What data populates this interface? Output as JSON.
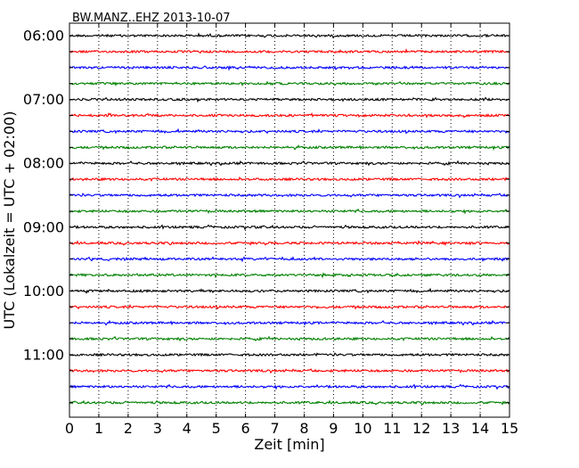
{
  "chart_data": {
    "type": "line",
    "title": "BW.MANZ..EHZ 2013-10-07",
    "xlabel": "Zeit  [min]",
    "ylabel": "UTC (Lokalzeit = UTC + 02:00)",
    "xlim": [
      0,
      15
    ],
    "x_ticks": [
      "0",
      "1",
      "2",
      "3",
      "4",
      "5",
      "6",
      "7",
      "8",
      "9",
      "10",
      "11",
      "12",
      "13",
      "14",
      "15"
    ],
    "y_tick_labels": [
      "06:00",
      "07:00",
      "08:00",
      "09:00",
      "10:00",
      "11:00"
    ],
    "grid": "vertical dotted",
    "start_time": "06:00",
    "minutes_per_trace": 15,
    "trace_colors": [
      "#000000",
      "#ff0000",
      "#0000ff",
      "#008000"
    ],
    "series": [
      {
        "time": "06:00"
      },
      {
        "time": "06:15"
      },
      {
        "time": "06:30"
      },
      {
        "time": "06:45"
      },
      {
        "time": "07:00"
      },
      {
        "time": "07:15"
      },
      {
        "time": "07:30"
      },
      {
        "time": "07:45"
      },
      {
        "time": "08:00"
      },
      {
        "time": "08:15"
      },
      {
        "time": "08:30"
      },
      {
        "time": "08:45"
      },
      {
        "time": "09:00"
      },
      {
        "time": "09:15"
      },
      {
        "time": "09:30"
      },
      {
        "time": "09:45"
      },
      {
        "time": "10:00"
      },
      {
        "time": "10:15"
      },
      {
        "time": "10:30"
      },
      {
        "time": "10:45"
      },
      {
        "time": "11:00"
      },
      {
        "time": "11:15"
      },
      {
        "time": "11:30"
      },
      {
        "time": "11:45"
      }
    ]
  }
}
